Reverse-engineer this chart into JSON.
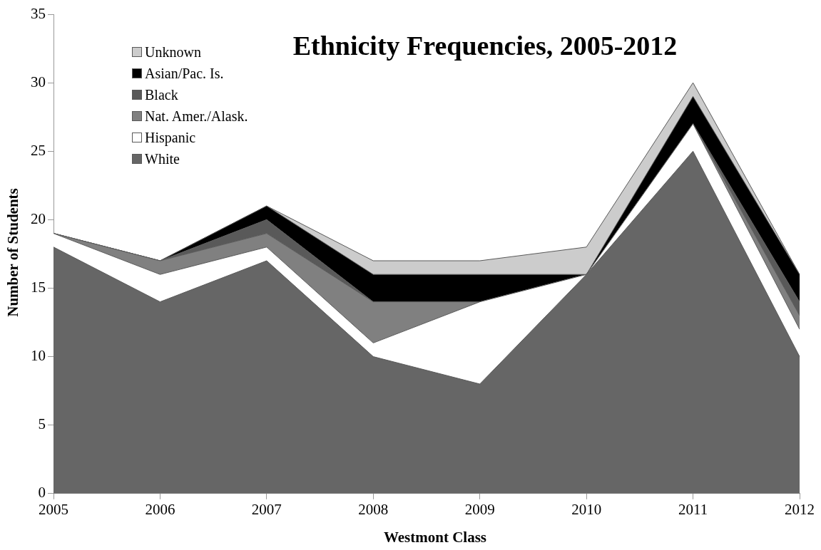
{
  "chart_data": {
    "type": "area",
    "title": "Ethnicity Frequencies, 2005-2012",
    "xlabel": "Westmont Class",
    "ylabel": "Number of Students",
    "categories": [
      "2005",
      "2006",
      "2007",
      "2008",
      "2009",
      "2010",
      "2011",
      "2012"
    ],
    "stacked": true,
    "ylim": [
      0,
      35
    ],
    "yticks": [
      0,
      5,
      10,
      15,
      20,
      25,
      30,
      35
    ],
    "grid": false,
    "legend": "top left",
    "series": [
      {
        "name": "White",
        "color": "#666666",
        "values": [
          18,
          14,
          17,
          10,
          8,
          16,
          25,
          10
        ]
      },
      {
        "name": "Hispanic",
        "color": "#ffffff",
        "values": [
          1,
          2,
          1,
          1,
          6,
          0,
          2,
          2
        ]
      },
      {
        "name": "Nat. Amer./Alask.",
        "color": "#808080",
        "values": [
          0,
          1,
          1,
          3,
          0,
          0,
          0,
          1
        ]
      },
      {
        "name": "Black",
        "color": "#595959",
        "values": [
          0,
          0,
          1,
          0,
          0,
          0,
          0,
          1
        ]
      },
      {
        "name": "Asian/Pac. Is.",
        "color": "#000000",
        "values": [
          0,
          0,
          1,
          2,
          2,
          0,
          2,
          2
        ]
      },
      {
        "name": "Unknown",
        "color": "#cccccc",
        "values": [
          0,
          0,
          0,
          1,
          1,
          2,
          1,
          0
        ]
      }
    ]
  }
}
